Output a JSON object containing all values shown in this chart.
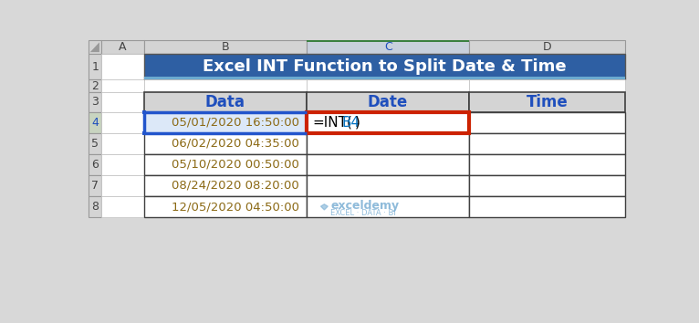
{
  "title": "Excel INT Function to Split Date & Time",
  "title_bg": "#2E5FA3",
  "title_fg": "#FFFFFF",
  "header_bg": "#D4D4D4",
  "header_fg": "#1F4FBD",
  "col_A_header_bg": "#D4D4D4",
  "col_B_header_bg": "#D4D4D4",
  "col_C_header_bg": "#C8D0DC",
  "col_D_header_bg": "#D4D4D4",
  "row4_header_bg": "#C8D4C0",
  "table_headers": [
    "Data",
    "Date",
    "Time"
  ],
  "data_rows": [
    "05/01/2020 16:50:00",
    "06/02/2020 04:35:00",
    "05/10/2020 00:50:00",
    "08/24/2020 08:20:00",
    "12/05/2020 04:50:00"
  ],
  "data_text_color": "#8B6914",
  "formula_black": "#000000",
  "formula_blue": "#0070C0",
  "cell_bg_white": "#FFFFFF",
  "cell_highlight_bg": "#DCE8F8",
  "grid_dark": "#404040",
  "grid_light": "#A0A0A0",
  "highlight_border_color": "#CC2200",
  "blue_border_color": "#2255CC",
  "watermark_color": "#7BAFD4",
  "fig_bg": "#D8D8D8",
  "title_bottom_line": "#6BAAD0",
  "col_C_green_line": "#3A8040"
}
